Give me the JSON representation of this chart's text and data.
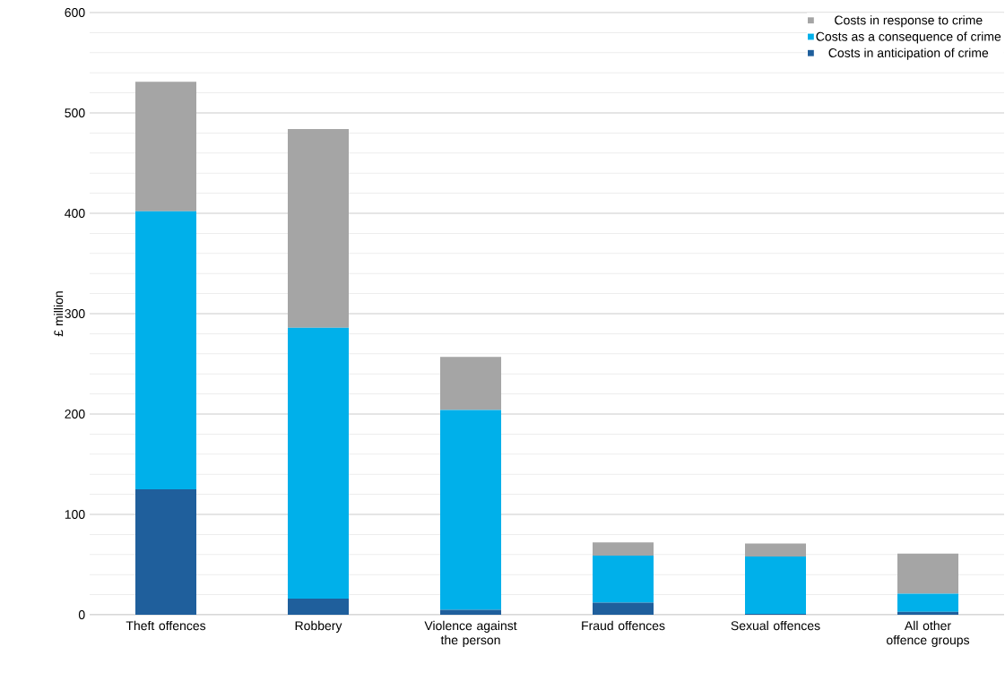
{
  "chart_data": {
    "type": "bar",
    "stacked": true,
    "ylabel": "£ million",
    "categories": [
      "Theft offences",
      "Robbery",
      "Violence against the person",
      "Fraud offences",
      "Sexual offences",
      "All other offence groups"
    ],
    "series": [
      {
        "name": "Costs in anticipation of crime",
        "color": "#1f5f9c",
        "values": [
          125,
          16,
          5,
          12,
          1,
          3
        ]
      },
      {
        "name": "Costs as a consequence of crime",
        "color": "#00b0ea",
        "values": [
          277,
          270,
          199,
          47,
          57,
          18
        ]
      },
      {
        "name": "Costs in response to crime",
        "color": "#a5a5a5",
        "values": [
          129,
          198,
          53,
          13,
          13,
          40
        ]
      }
    ],
    "ylim": [
      0,
      600
    ],
    "yticks": [
      0,
      100,
      200,
      300,
      400,
      500,
      600
    ],
    "grid": "y",
    "legend": "top right"
  }
}
